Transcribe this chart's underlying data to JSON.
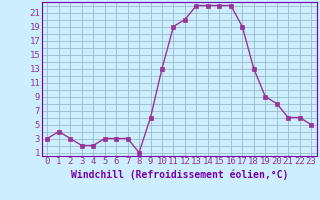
{
  "x": [
    0,
    1,
    2,
    3,
    4,
    5,
    6,
    7,
    8,
    9,
    10,
    11,
    12,
    13,
    14,
    15,
    16,
    17,
    18,
    19,
    20,
    21,
    22,
    23
  ],
  "y": [
    3,
    4,
    3,
    2,
    2,
    3,
    3,
    3,
    1,
    6,
    13,
    19,
    20,
    22,
    22,
    22,
    22,
    19,
    13,
    9,
    8,
    6,
    6,
    5
  ],
  "line_color": "#993399",
  "marker": "s",
  "marker_size": 2.5,
  "bg_color": "#cceeff",
  "grid_color": "#99bbcc",
  "xlabel": "Windchill (Refroidissement éolien,°C)",
  "xlabel_fontsize": 7,
  "tick_fontsize": 6.5,
  "yticks": [
    1,
    3,
    5,
    7,
    9,
    11,
    13,
    15,
    17,
    19,
    21
  ],
  "ylim": [
    0.5,
    22.5
  ],
  "xlim": [
    -0.5,
    23.5
  ],
  "tick_color": "#993399",
  "label_color": "#7700aa"
}
